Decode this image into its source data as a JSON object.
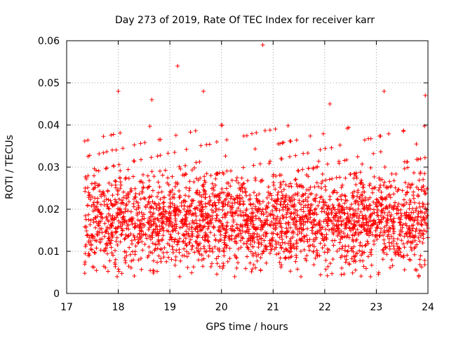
{
  "chart_data": {
    "type": "scatter",
    "title": "Day 273 of 2019, Rate Of TEC Index for receiver karr",
    "xlabel": "GPS time / hours",
    "ylabel": "ROTI / TECUs",
    "xlim": [
      17,
      24
    ],
    "ylim": [
      0,
      0.06
    ],
    "x_ticks": [
      "17",
      "18",
      "19",
      "20",
      "21",
      "22",
      "23",
      "24"
    ],
    "y_ticks": [
      "0",
      "0.01",
      "0.02",
      "0.03",
      "0.04",
      "0.05",
      "0.06"
    ],
    "grid": true,
    "marker": "+",
    "series": [
      {
        "name": "ROTI",
        "color": "#ff0000",
        "x_range": [
          17.35,
          24.0
        ],
        "typical_range": [
          0.005,
          0.03
        ],
        "notable_points": [
          {
            "x": 18.0,
            "y": 0.048
          },
          {
            "x": 18.65,
            "y": 0.046
          },
          {
            "x": 19.15,
            "y": 0.054
          },
          {
            "x": 19.65,
            "y": 0.048
          },
          {
            "x": 20.8,
            "y": 0.059
          },
          {
            "x": 22.1,
            "y": 0.045
          },
          {
            "x": 23.15,
            "y": 0.048
          },
          {
            "x": 23.95,
            "y": 0.047
          }
        ]
      }
    ]
  }
}
